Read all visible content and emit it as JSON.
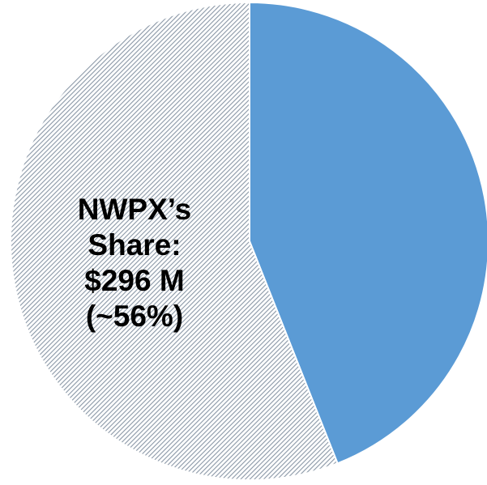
{
  "chart_data": {
    "type": "pie",
    "categories": [
      null,
      "NWPX’s Share:"
    ],
    "values": [
      44,
      56
    ],
    "value_labels": [
      null,
      "$296 M (~56%)"
    ],
    "colors": [
      "#5b9bd5",
      "#8a97a6"
    ],
    "hatch": [
      false,
      true
    ]
  }
}
